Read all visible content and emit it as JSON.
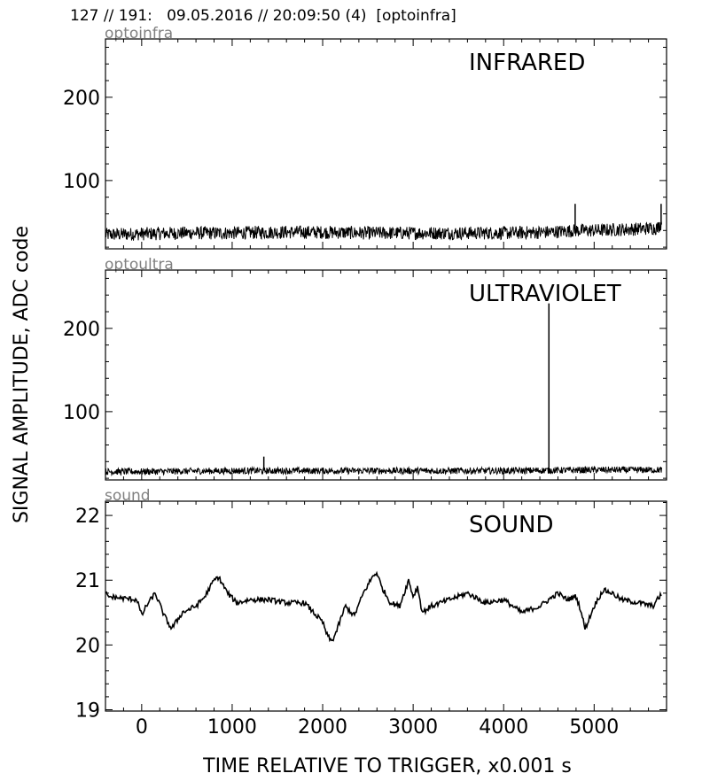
{
  "header": "127 // 191:   09.05.2016 // 20:09:50 (4)  [optoinfra]",
  "ylabel": "SIGNAL AMPLITUDE,  ADC code",
  "xlabel": "TIME RELATIVE TO TRIGGER,   x0.001 s",
  "chart_data": [
    {
      "type": "line",
      "channel_label": "optoinfra",
      "title": "INFRARED",
      "xlim": [
        -400,
        5800
      ],
      "ylim": [
        18,
        270
      ],
      "yticks": [
        100,
        200
      ],
      "xticks": [
        0,
        1000,
        2000,
        3000,
        4000,
        5000
      ],
      "x_tick_labels_shown": false,
      "series": [
        {
          "x": [
            -400,
            0,
            500,
            1000,
            1500,
            2000,
            2500,
            3000,
            3500,
            4000,
            4500,
            4800,
            5000,
            5500,
            5700,
            5750
          ],
          "y": [
            35,
            36,
            37,
            37,
            38,
            38,
            37,
            37,
            37,
            37,
            38,
            40,
            40,
            42,
            43,
            50
          ],
          "noise_band": 8,
          "spikes": [
            {
              "x": 4790,
              "y": 72
            },
            {
              "x": 5740,
              "y": 72
            }
          ]
        }
      ]
    },
    {
      "type": "line",
      "channel_label": "optoultra",
      "title": "ULTRAVIOLET",
      "xlim": [
        -400,
        5800
      ],
      "ylim": [
        18,
        270
      ],
      "yticks": [
        100,
        200
      ],
      "xticks": [
        0,
        1000,
        2000,
        3000,
        4000,
        5000
      ],
      "x_tick_labels_shown": false,
      "series": [
        {
          "x": [
            -400,
            0,
            1000,
            2000,
            3000,
            4000,
            5000,
            5750
          ],
          "y": [
            28,
            28,
            29,
            29,
            29,
            29,
            30,
            30
          ],
          "noise_band": 4,
          "spikes": [
            {
              "x": 1350,
              "y": 46
            },
            {
              "x": 4500,
              "y": 230
            }
          ]
        }
      ]
    },
    {
      "type": "line",
      "channel_label": "sound",
      "title": "SOUND",
      "xlim": [
        -400,
        5800
      ],
      "ylim": [
        18.98,
        22.22
      ],
      "yticks": [
        19,
        20,
        21,
        22
      ],
      "xticks": [
        0,
        1000,
        2000,
        3000,
        4000,
        5000
      ],
      "x_tick_labels_shown": true,
      "series": [
        {
          "x": [
            -390,
            -200,
            -50,
            0,
            50,
            150,
            250,
            330,
            450,
            600,
            700,
            800,
            850,
            950,
            1050,
            1200,
            1400,
            1600,
            1800,
            1900,
            2000,
            2050,
            2100,
            2150,
            2250,
            2350,
            2450,
            2550,
            2600,
            2650,
            2750,
            2850,
            2950,
            3000,
            3050,
            3100,
            3200,
            3400,
            3600,
            3800,
            4000,
            4200,
            4400,
            4600,
            4700,
            4800,
            4850,
            4900,
            5000,
            5100,
            5200,
            5300,
            5500,
            5650,
            5750
          ],
          "y": [
            20.75,
            20.72,
            20.7,
            20.45,
            20.6,
            20.8,
            20.45,
            20.25,
            20.5,
            20.6,
            20.75,
            21.0,
            21.05,
            20.8,
            20.65,
            20.7,
            20.7,
            20.65,
            20.65,
            20.5,
            20.35,
            20.15,
            20.05,
            20.2,
            20.6,
            20.45,
            20.8,
            21.05,
            21.12,
            20.9,
            20.65,
            20.6,
            21.0,
            20.75,
            20.9,
            20.5,
            20.6,
            20.7,
            20.8,
            20.65,
            20.7,
            20.5,
            20.6,
            20.8,
            20.7,
            20.75,
            20.55,
            20.25,
            20.6,
            20.85,
            20.8,
            20.7,
            20.65,
            20.6,
            20.8
          ],
          "noise_band": 0.04
        }
      ]
    }
  ]
}
